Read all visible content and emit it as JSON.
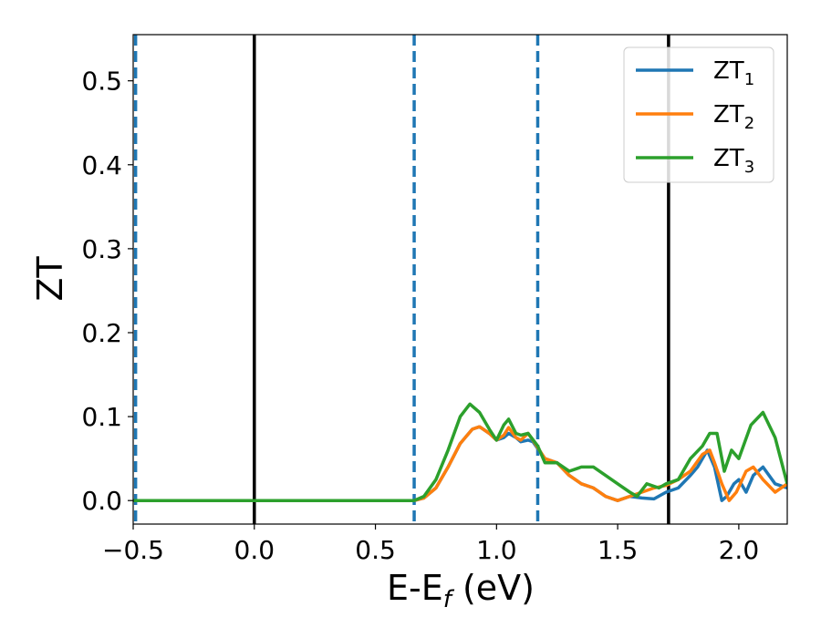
{
  "chart_data": {
    "type": "line",
    "xlabel": "E-E_f (eV)",
    "ylabel": "ZT",
    "xlim": [
      -0.5,
      2.2
    ],
    "ylim": [
      -0.028,
      0.555
    ],
    "x_ticks": [
      -0.5,
      0.0,
      0.5,
      1.0,
      1.5,
      2.0
    ],
    "x_tick_labels": [
      "−0.5",
      "0.0",
      "0.5",
      "1.0",
      "1.5",
      "2.0"
    ],
    "y_ticks": [
      0.0,
      0.1,
      0.2,
      0.3,
      0.4,
      0.5
    ],
    "y_tick_labels": [
      "0.0",
      "0.1",
      "0.2",
      "0.3",
      "0.4",
      "0.5"
    ],
    "grid": false,
    "legend_position": "top-right",
    "vertical_lines": [
      {
        "x": -0.49,
        "style": "dashed",
        "color": "#1f77b4"
      },
      {
        "x": 0.0,
        "style": "solid",
        "color": "#000000"
      },
      {
        "x": 0.66,
        "style": "dashed",
        "color": "#1f77b4"
      },
      {
        "x": 1.17,
        "style": "dashed",
        "color": "#1f77b4"
      },
      {
        "x": 1.71,
        "style": "solid",
        "color": "#000000"
      }
    ],
    "series": [
      {
        "name": "ZT1",
        "label_main": "ZT",
        "label_sub": "1",
        "color": "#1f77b4",
        "points": [
          [
            -0.5,
            0.0
          ],
          [
            0.6,
            0.0
          ],
          [
            0.66,
            0.0
          ],
          [
            0.7,
            0.003
          ],
          [
            0.75,
            0.015
          ],
          [
            0.8,
            0.04
          ],
          [
            0.85,
            0.068
          ],
          [
            0.9,
            0.085
          ],
          [
            0.93,
            0.088
          ],
          [
            0.97,
            0.08
          ],
          [
            1.0,
            0.072
          ],
          [
            1.03,
            0.075
          ],
          [
            1.05,
            0.08
          ],
          [
            1.08,
            0.075
          ],
          [
            1.1,
            0.07
          ],
          [
            1.13,
            0.072
          ],
          [
            1.15,
            0.07
          ],
          [
            1.2,
            0.05
          ],
          [
            1.25,
            0.045
          ],
          [
            1.3,
            0.03
          ],
          [
            1.35,
            0.02
          ],
          [
            1.4,
            0.015
          ],
          [
            1.45,
            0.005
          ],
          [
            1.5,
            0.0
          ],
          [
            1.55,
            0.005
          ],
          [
            1.6,
            0.003
          ],
          [
            1.65,
            0.002
          ],
          [
            1.7,
            0.01
          ],
          [
            1.75,
            0.015
          ],
          [
            1.8,
            0.03
          ],
          [
            1.83,
            0.04
          ],
          [
            1.87,
            0.06
          ],
          [
            1.9,
            0.04
          ],
          [
            1.93,
            0.0
          ],
          [
            1.95,
            0.005
          ],
          [
            1.98,
            0.02
          ],
          [
            2.0,
            0.025
          ],
          [
            2.03,
            0.01
          ],
          [
            2.06,
            0.03
          ],
          [
            2.1,
            0.04
          ],
          [
            2.15,
            0.02
          ],
          [
            2.2,
            0.015
          ]
        ]
      },
      {
        "name": "ZT2",
        "label_main": "ZT",
        "label_sub": "2",
        "color": "#ff7f0e",
        "points": [
          [
            -0.5,
            0.0
          ],
          [
            0.6,
            0.0
          ],
          [
            0.66,
            0.0
          ],
          [
            0.7,
            0.003
          ],
          [
            0.75,
            0.015
          ],
          [
            0.8,
            0.04
          ],
          [
            0.85,
            0.068
          ],
          [
            0.9,
            0.085
          ],
          [
            0.93,
            0.088
          ],
          [
            0.97,
            0.08
          ],
          [
            1.0,
            0.072
          ],
          [
            1.03,
            0.078
          ],
          [
            1.05,
            0.087
          ],
          [
            1.08,
            0.075
          ],
          [
            1.1,
            0.072
          ],
          [
            1.13,
            0.08
          ],
          [
            1.15,
            0.072
          ],
          [
            1.2,
            0.05
          ],
          [
            1.25,
            0.045
          ],
          [
            1.3,
            0.03
          ],
          [
            1.35,
            0.02
          ],
          [
            1.4,
            0.015
          ],
          [
            1.45,
            0.005
          ],
          [
            1.5,
            0.0
          ],
          [
            1.55,
            0.005
          ],
          [
            1.6,
            0.01
          ],
          [
            1.65,
            0.015
          ],
          [
            1.7,
            0.018
          ],
          [
            1.75,
            0.025
          ],
          [
            1.8,
            0.035
          ],
          [
            1.85,
            0.055
          ],
          [
            1.88,
            0.06
          ],
          [
            1.9,
            0.045
          ],
          [
            1.93,
            0.02
          ],
          [
            1.96,
            0.0
          ],
          [
            1.99,
            0.01
          ],
          [
            2.03,
            0.035
          ],
          [
            2.06,
            0.04
          ],
          [
            2.1,
            0.025
          ],
          [
            2.15,
            0.01
          ],
          [
            2.2,
            0.02
          ]
        ]
      },
      {
        "name": "ZT3",
        "label_main": "ZT",
        "label_sub": "3",
        "color": "#2ca02c",
        "points": [
          [
            -0.5,
            0.0
          ],
          [
            0.6,
            0.0
          ],
          [
            0.66,
            0.0
          ],
          [
            0.7,
            0.005
          ],
          [
            0.75,
            0.025
          ],
          [
            0.8,
            0.06
          ],
          [
            0.85,
            0.1
          ],
          [
            0.89,
            0.115
          ],
          [
            0.93,
            0.105
          ],
          [
            0.97,
            0.085
          ],
          [
            1.0,
            0.072
          ],
          [
            1.03,
            0.09
          ],
          [
            1.05,
            0.097
          ],
          [
            1.08,
            0.08
          ],
          [
            1.1,
            0.078
          ],
          [
            1.13,
            0.08
          ],
          [
            1.17,
            0.065
          ],
          [
            1.2,
            0.045
          ],
          [
            1.25,
            0.045
          ],
          [
            1.3,
            0.035
          ],
          [
            1.35,
            0.04
          ],
          [
            1.4,
            0.04
          ],
          [
            1.45,
            0.03
          ],
          [
            1.5,
            0.02
          ],
          [
            1.55,
            0.01
          ],
          [
            1.58,
            0.005
          ],
          [
            1.62,
            0.02
          ],
          [
            1.67,
            0.015
          ],
          [
            1.7,
            0.02
          ],
          [
            1.75,
            0.025
          ],
          [
            1.8,
            0.05
          ],
          [
            1.85,
            0.065
          ],
          [
            1.88,
            0.08
          ],
          [
            1.91,
            0.08
          ],
          [
            1.94,
            0.035
          ],
          [
            1.97,
            0.06
          ],
          [
            2.0,
            0.05
          ],
          [
            2.05,
            0.09
          ],
          [
            2.1,
            0.105
          ],
          [
            2.15,
            0.075
          ],
          [
            2.2,
            0.02
          ]
        ]
      }
    ]
  }
}
